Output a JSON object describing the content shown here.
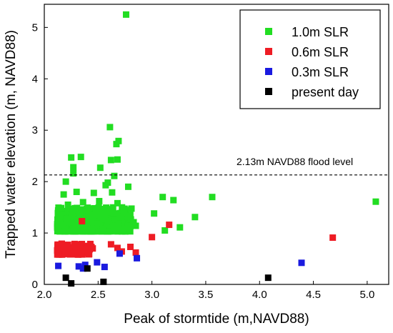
{
  "chart_data": {
    "type": "scatter",
    "xlabel": "Peak of stormtide (m,NAVD88)",
    "ylabel": "Trapped water elevation (m, NAVD88)",
    "xlim": [
      2.0,
      5.2
    ],
    "ylim": [
      0,
      5.45
    ],
    "x_ticks": [
      "2.0",
      "2.5",
      "3.0",
      "3.5",
      "4.0",
      "4.5",
      "5.0"
    ],
    "y_ticks": [
      "0",
      "1",
      "2",
      "3",
      "4",
      "5"
    ],
    "x_tick_values": [
      2.0,
      2.5,
      3.0,
      3.5,
      4.0,
      4.5,
      5.0
    ],
    "y_tick_values": [
      0,
      1,
      2,
      3,
      4,
      5
    ],
    "legend_position": "top-right",
    "reference_line": {
      "y": 2.13,
      "style": "dashed",
      "label": "2.13m NAVD88 flood level"
    },
    "series": [
      {
        "name": "1.0m SLR",
        "color": "#22dd22",
        "points": [
          [
            2.76,
            5.25
          ],
          [
            2.61,
            3.06
          ],
          [
            2.69,
            2.79
          ],
          [
            2.67,
            2.73
          ],
          [
            2.25,
            2.47
          ],
          [
            2.34,
            2.48
          ],
          [
            2.68,
            2.43
          ],
          [
            2.27,
            2.28
          ],
          [
            2.62,
            2.42
          ],
          [
            2.52,
            2.27
          ],
          [
            2.2,
            2.0
          ],
          [
            2.65,
            2.11
          ],
          [
            2.27,
            2.16
          ],
          [
            2.57,
            1.93
          ],
          [
            2.78,
            1.9
          ],
          [
            2.59,
            1.98
          ],
          [
            2.18,
            1.75
          ],
          [
            2.3,
            1.8
          ],
          [
            2.46,
            1.78
          ],
          [
            2.63,
            1.79
          ],
          [
            2.22,
            1.55
          ],
          [
            2.36,
            1.6
          ],
          [
            2.51,
            1.62
          ],
          [
            2.68,
            1.58
          ],
          [
            3.1,
            1.7
          ],
          [
            3.2,
            1.64
          ],
          [
            3.56,
            1.7
          ],
          [
            5.08,
            1.61
          ],
          [
            3.02,
            1.38
          ],
          [
            3.4,
            1.31
          ],
          [
            3.26,
            1.11
          ],
          [
            3.12,
            1.05
          ],
          [
            2.83,
            1.21
          ],
          [
            2.85,
            1.14
          ]
        ],
        "cluster": {
          "x_range": [
            2.12,
            2.82
          ],
          "y_range": [
            1.03,
            1.5
          ],
          "count": 420
        }
      },
      {
        "name": "0.6m SLR",
        "color": "#ee1c24",
        "points": [
          [
            2.35,
            1.23
          ],
          [
            3.0,
            0.92
          ],
          [
            3.16,
            1.16
          ],
          [
            4.68,
            0.91
          ],
          [
            2.62,
            0.78
          ],
          [
            2.68,
            0.71
          ],
          [
            2.72,
            0.64
          ],
          [
            2.8,
            0.73
          ],
          [
            2.85,
            0.62
          ],
          [
            2.45,
            0.7
          ],
          [
            2.28,
            0.62
          ],
          [
            2.4,
            0.69
          ]
        ],
        "cluster": {
          "x_range": [
            2.12,
            2.44
          ],
          "y_range": [
            0.58,
            0.8
          ],
          "count": 110
        }
      },
      {
        "name": "0.3m SLR",
        "color": "#1a1adf",
        "points": [
          [
            2.13,
            0.36
          ],
          [
            2.32,
            0.35
          ],
          [
            2.38,
            0.38
          ],
          [
            2.49,
            0.43
          ],
          [
            2.56,
            0.34
          ],
          [
            2.7,
            0.6
          ],
          [
            2.86,
            0.51
          ],
          [
            4.39,
            0.42
          ],
          [
            2.36,
            0.31
          ]
        ]
      },
      {
        "name": "present day",
        "color": "#000000",
        "points": [
          [
            2.2,
            0.13
          ],
          [
            2.25,
            0.02
          ],
          [
            2.4,
            0.31
          ],
          [
            2.55,
            0.05
          ],
          [
            4.08,
            0.13
          ]
        ]
      }
    ]
  }
}
